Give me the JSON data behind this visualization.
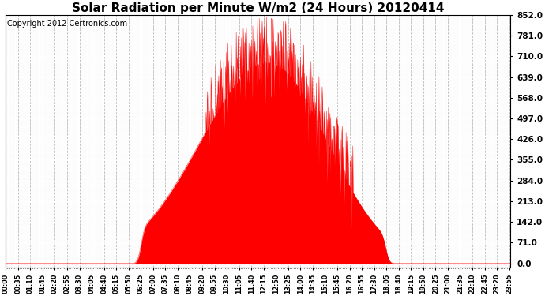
{
  "title": "Solar Radiation per Minute W/m2 (24 Hours) 20120414",
  "copyright": "Copyright 2012 Certronics.com",
  "y_ticks": [
    0.0,
    71.0,
    142.0,
    213.0,
    284.0,
    355.0,
    426.0,
    497.0,
    568.0,
    639.0,
    710.0,
    781.0,
    852.0
  ],
  "y_min": 0.0,
  "y_max": 852.0,
  "fill_color": "#FF0000",
  "line_color": "#FF0000",
  "bg_color": "#FFFFFF",
  "plot_bg_color": "#FFFFFF",
  "grid_color": "#999999",
  "title_fontsize": 11,
  "copyright_fontsize": 7,
  "x_tick_step_min": 35
}
